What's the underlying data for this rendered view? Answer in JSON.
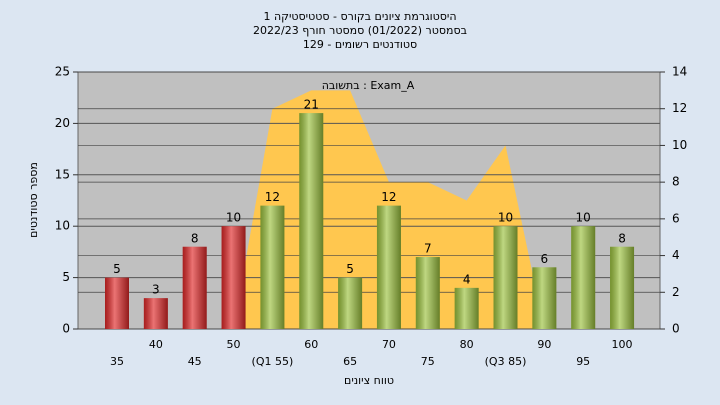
{
  "chart_data": {
    "type": "bar",
    "title": [
      "היסטוגרמת ציונים בקורס - סטטיסטיקה 1",
      "בסמסטר  (01/2022)  סמסטר חורף 2022/23",
      "סטודנטים רשומים - 129"
    ],
    "annotation": "Exam_A : בתשובה",
    "xlabel": "טווח ציונים",
    "ylabel": "מספר סטודנטים",
    "categories": [
      "35",
      "40",
      "45",
      "50",
      "(Q1 55)",
      "60",
      "65",
      "70",
      "75",
      "80",
      "(Q3 85)",
      "90",
      "95",
      "100"
    ],
    "values": [
      5,
      3,
      8,
      10,
      12,
      21,
      5,
      12,
      7,
      4,
      10,
      6,
      10,
      8
    ],
    "colors": [
      "#e02828",
      "#e02828",
      "#e02828",
      "#e02828",
      "#9cc23e",
      "#9cc23e",
      "#9cc23e",
      "#9cc23e",
      "#9cc23e",
      "#9cc23e",
      "#9cc23e",
      "#9cc23e",
      "#9cc23e",
      "#9cc23e"
    ],
    "area": {
      "axis": "y2",
      "color": "#ffc74f",
      "values": [
        null,
        null,
        null,
        0,
        12,
        13,
        13,
        8,
        8,
        7,
        10,
        0,
        null,
        null
      ]
    },
    "ylim": [
      0,
      25
    ],
    "yticks": [
      0,
      5,
      10,
      15,
      20,
      25
    ],
    "y2lim": [
      0,
      14
    ],
    "y2ticks": [
      0,
      2,
      4,
      6,
      8,
      10,
      12,
      14
    ],
    "grid": true
  }
}
